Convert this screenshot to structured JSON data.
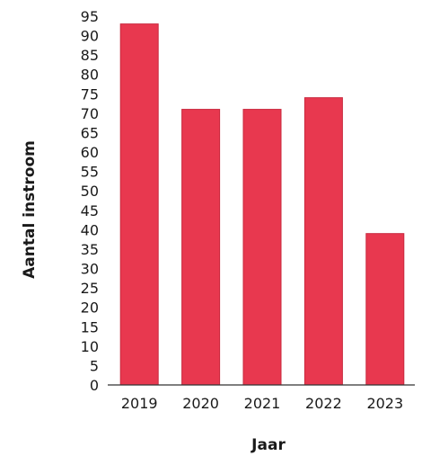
{
  "chart_data": {
    "type": "bar",
    "title": "",
    "xlabel": "Jaar",
    "ylabel": "Aantal instroom",
    "categories": [
      "2019",
      "2020",
      "2021",
      "2022",
      "2023"
    ],
    "values": [
      93,
      71,
      71,
      74,
      39
    ],
    "ylim": [
      0,
      95
    ],
    "yticks": [
      0,
      5,
      10,
      15,
      20,
      25,
      30,
      35,
      40,
      45,
      50,
      55,
      60,
      65,
      70,
      75,
      80,
      85,
      90,
      95
    ],
    "grid": false,
    "legend": "none",
    "bar_color": "#e8384f",
    "bar_edge_color": "#c9283e"
  }
}
